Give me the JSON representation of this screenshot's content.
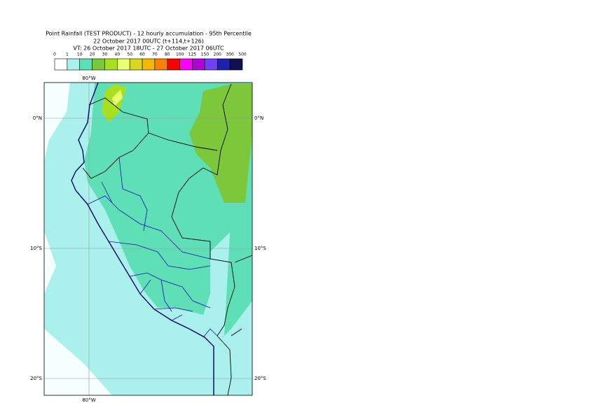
{
  "header": {
    "title": "Point Rainfall (TEST PRODUCT) - 12 hourly accumulation - 95th Percentile",
    "base_time": "22 October 2017 00UTC (t+114,t+126)",
    "valid_time": "VT: 26 October 2017 18UTC - 27 October 2017 06UTC"
  },
  "legend": {
    "labels": [
      "0",
      "1",
      "10",
      "20",
      "30",
      "40",
      "50",
      "60",
      "70",
      "80",
      "100",
      "125",
      "150",
      "200",
      "300",
      "500"
    ],
    "colors": [
      "#ffffff",
      "#aaf0ec",
      "#5fdfb5",
      "#7cc83a",
      "#a8e020",
      "#e8ff70",
      "#d8d820",
      "#f5b800",
      "#ff8000",
      "#ff0000",
      "#ff00ff",
      "#b000d8",
      "#7040ff",
      "#2020b0",
      "#101050"
    ]
  },
  "map": {
    "top_label": "80°W",
    "bottom_label": "80°W",
    "left_labels": [
      "0°N",
      "10°S",
      "20°S"
    ],
    "right_labels": [
      "0°N",
      "10°S",
      "20°S"
    ]
  }
}
